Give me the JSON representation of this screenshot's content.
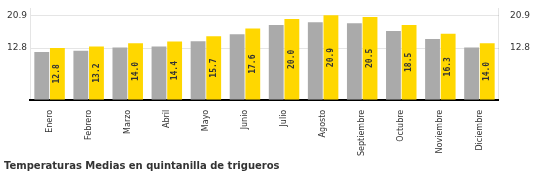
{
  "chart_data": {
    "type": "bar",
    "title": "Temperaturas Medias en quintanilla de trigueros",
    "categories": [
      "Enero",
      "Febrero",
      "Marzo",
      "Abril",
      "Mayo",
      "Junio",
      "Julio",
      "Agosto",
      "Septiembre",
      "Octubre",
      "Noviembre",
      "Diciembre"
    ],
    "series": [
      {
        "color": "#AAAAAA",
        "values": [
          11.8,
          12.1,
          12.9,
          13.2,
          14.5,
          16.2,
          18.5,
          19.2,
          18.9,
          17.0,
          15.0,
          12.9
        ]
      },
      {
        "color": "#FFD700",
        "values": [
          12.8,
          13.2,
          14.0,
          14.4,
          15.7,
          17.6,
          20.0,
          20.9,
          20.5,
          18.5,
          16.3,
          14.0
        ],
        "value_labels": [
          "12.8",
          "13.2",
          "14.0",
          "14.4",
          "15.7",
          "17.6",
          "20.0",
          "20.9",
          "20.5",
          "18.5",
          "16.3",
          "14.0"
        ],
        "data_labels": true
      }
    ],
    "ylim": [
      0,
      22.6
    ],
    "yticks": [
      12.8,
      20.9
    ],
    "y2lim": [
      0,
      22.6
    ],
    "y2ticks": [
      12.8,
      20.9
    ],
    "grid": true
  }
}
